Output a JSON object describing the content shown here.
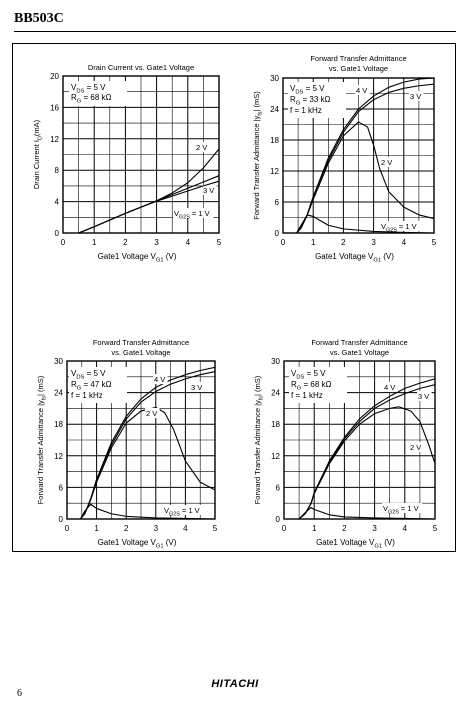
{
  "header": {
    "title": "BB503C"
  },
  "footer": {
    "brand": "HITACHI",
    "page_number": "6"
  },
  "chart_data": [
    {
      "type": "line",
      "title": "Drain Current vs. Gate1 Voltage",
      "xlabel": "Gate1 Voltage   V",
      "xlabel_sub": "G1",
      "xlabel_unit": "(V)",
      "ylabel": "Drain Current   I",
      "ylabel_sub": "D",
      "ylabel_unit": "(mA)",
      "xlim": [
        0,
        5
      ],
      "ylim": [
        0,
        20
      ],
      "xticks": [
        "0",
        "1",
        "2",
        "3",
        "4",
        "5"
      ],
      "yticks": [
        "0",
        "4",
        "8",
        "12",
        "16",
        "20"
      ],
      "conditions": [
        {
          "t": "V",
          "sub": "DS",
          "rest": "   = 5 V"
        },
        {
          "t": "R",
          "sub": "G",
          "rest": " = 68 kΩ"
        }
      ],
      "series": [
        {
          "name": "2 V",
          "x": [
            0.5,
            1,
            1.5,
            2,
            2.5,
            3,
            3.5,
            4,
            4.5,
            5
          ],
          "y": [
            0,
            0.8,
            1.65,
            2.5,
            3.3,
            4.1,
            5.1,
            6.4,
            8.3,
            10.7
          ]
        },
        {
          "name": "3 V",
          "x": [
            0.5,
            1,
            1.5,
            2,
            2.5,
            3,
            3.5,
            4,
            4.5,
            5
          ],
          "y": [
            0,
            0.8,
            1.65,
            2.5,
            3.3,
            4.1,
            4.9,
            5.7,
            6.5,
            7.3
          ]
        },
        {
          "name": "V",
          "name_sub": "G2S",
          "name_rest": " = 1 V",
          "x": [
            0.5,
            1,
            1.5,
            2,
            2.5,
            3,
            3.5,
            4,
            4.5,
            5
          ],
          "y": [
            0,
            0.8,
            1.65,
            2.5,
            3.3,
            4.05,
            4.7,
            5.35,
            6,
            6.6
          ]
        }
      ]
    },
    {
      "type": "line",
      "title": "Forward Transfer Admittance",
      "subtitle": "vs. Gate1 Voltage",
      "xlabel": "Gate1 Voltage   V",
      "xlabel_sub": "G1",
      "xlabel_unit": "(V)",
      "ylabel": "Forward Transfer Admittance  |y",
      "ylabel_sub": "fs",
      "ylabel_unit": "|  (mS)",
      "xlim": [
        0,
        5
      ],
      "ylim": [
        0,
        30
      ],
      "xticks": [
        "0",
        "1",
        "2",
        "3",
        "4",
        "5"
      ],
      "yticks": [
        "0",
        "6",
        "12",
        "18",
        "24",
        "30"
      ],
      "conditions": [
        {
          "t": "V",
          "sub": "DS",
          "rest": "   = 5 V"
        },
        {
          "t": "R",
          "sub": "G",
          "rest": " = 33 kΩ"
        },
        {
          "t": "f = 1 kHz",
          "sub": "",
          "rest": ""
        }
      ],
      "series": [
        {
          "name": "4 V",
          "x": [
            0.45,
            0.6,
            0.8,
            1,
            1.5,
            2,
            2.5,
            3,
            3.5,
            4,
            4.5,
            5
          ],
          "y": [
            0,
            1,
            3.5,
            7,
            14.5,
            20,
            24,
            26.5,
            28.2,
            29.2,
            29.8,
            30
          ]
        },
        {
          "name": "3 V",
          "x": [
            0.45,
            0.6,
            0.8,
            1,
            1.5,
            2,
            2.5,
            3,
            3.5,
            4,
            4.5,
            5
          ],
          "y": [
            0,
            1,
            3.5,
            7,
            14,
            19.5,
            23.5,
            25.8,
            27.2,
            28,
            28.5,
            28.8
          ]
        },
        {
          "name": "2 V",
          "x": [
            0.45,
            0.6,
            0.8,
            1,
            1.5,
            2,
            2.5,
            2.8,
            3,
            3.2,
            3.5,
            4,
            4.5,
            5
          ],
          "y": [
            0,
            1,
            3.4,
            6.5,
            13.5,
            18.8,
            21.5,
            20.5,
            17,
            12.5,
            8,
            5,
            3.5,
            2.8
          ]
        },
        {
          "name": "V",
          "name_sub": "G2S",
          "name_rest": " = 1 V",
          "x": [
            0.45,
            0.6,
            0.8,
            1,
            1.5,
            2,
            3,
            4,
            5
          ],
          "y": [
            0,
            1.5,
            3.5,
            3.2,
            1.5,
            0.8,
            0.3,
            0.1,
            0
          ]
        }
      ]
    },
    {
      "type": "line",
      "title": "Forward Transfer Admittance",
      "subtitle": "vs. Gate1 Voltage",
      "xlabel": "Gate1 Voltage   V",
      "xlabel_sub": "G1",
      "xlabel_unit": "(V)",
      "ylabel": "Forward Transfer Admittance  |y",
      "ylabel_sub": "fs",
      "ylabel_unit": "|  (mS)",
      "xlim": [
        0,
        5
      ],
      "ylim": [
        0,
        30
      ],
      "xticks": [
        "0",
        "1",
        "2",
        "3",
        "4",
        "5"
      ],
      "yticks": [
        "0",
        "6",
        "12",
        "18",
        "24",
        "30"
      ],
      "conditions": [
        {
          "t": "V",
          "sub": "DS",
          "rest": "   = 5 V"
        },
        {
          "t": "R",
          "sub": "G",
          "rest": " = 47 kΩ"
        },
        {
          "t": "f = 1 kHz",
          "sub": "",
          "rest": ""
        }
      ],
      "series": [
        {
          "name": "4 V",
          "x": [
            0.45,
            0.6,
            0.8,
            1,
            1.5,
            2,
            2.5,
            3,
            3.5,
            4,
            4.5,
            5
          ],
          "y": [
            0,
            1,
            3.8,
            7.5,
            14.5,
            19.5,
            22.8,
            25,
            26.4,
            27.4,
            28.2,
            28.8
          ]
        },
        {
          "name": "3 V",
          "x": [
            0.45,
            0.6,
            0.8,
            1,
            1.5,
            2,
            2.5,
            3,
            3.5,
            4,
            4.5,
            5
          ],
          "y": [
            0,
            1,
            3.8,
            7.5,
            14,
            19,
            22.2,
            24.2,
            25.6,
            26.6,
            27.4,
            28
          ]
        },
        {
          "name": "2 V",
          "x": [
            0.45,
            0.6,
            0.8,
            1,
            1.5,
            2,
            2.5,
            3,
            3.3,
            3.6,
            4,
            4.5,
            5
          ],
          "y": [
            0,
            1,
            3.6,
            7,
            13.5,
            18.2,
            20.5,
            21.2,
            20.2,
            17,
            11,
            7,
            5.5
          ]
        },
        {
          "name": "V",
          "name_sub": "G2S",
          "name_rest": " = 1 V",
          "x": [
            0.45,
            0.6,
            0.8,
            1,
            1.5,
            2,
            3,
            4,
            5
          ],
          "y": [
            0,
            1.5,
            2.8,
            2,
            1,
            0.5,
            0.2,
            0.1,
            0
          ]
        }
      ]
    },
    {
      "type": "line",
      "title": "Forward Transfer Admittance",
      "subtitle": "vs. Gate1 Voltage",
      "xlabel": "Gate1 Voltage   V",
      "xlabel_sub": "G1",
      "xlabel_unit": "(V)",
      "ylabel": "Forward Transfer Admittance  |y",
      "ylabel_sub": "fs",
      "ylabel_unit": "|  (mS)",
      "xlim": [
        0,
        5
      ],
      "ylim": [
        0,
        30
      ],
      "xticks": [
        "0",
        "1",
        "2",
        "3",
        "4",
        "5"
      ],
      "yticks": [
        "0",
        "6",
        "12",
        "18",
        "24",
        "30"
      ],
      "conditions": [
        {
          "t": "V",
          "sub": "DS",
          "rest": "   = 5 V"
        },
        {
          "t": "R",
          "sub": "G",
          "rest": " = 68 kΩ"
        },
        {
          "t": "f = 1 kHz",
          "sub": "",
          "rest": ""
        }
      ],
      "series": [
        {
          "name": "4 V",
          "x": [
            0.5,
            0.7,
            0.9,
            1,
            1.5,
            2,
            2.5,
            3,
            3.5,
            4,
            4.5,
            5
          ],
          "y": [
            0,
            1,
            3,
            5,
            11,
            15.5,
            19,
            21.5,
            23.3,
            24.8,
            25.8,
            26.6
          ]
        },
        {
          "name": "3 V",
          "x": [
            0.5,
            0.7,
            0.9,
            1,
            1.5,
            2,
            2.5,
            3,
            3.5,
            4,
            4.5,
            5
          ],
          "y": [
            0,
            1,
            3,
            5,
            10.7,
            15.2,
            18.5,
            21,
            22.6,
            23.8,
            24.8,
            25.5
          ]
        },
        {
          "name": "2 V",
          "x": [
            0.5,
            0.7,
            0.9,
            1,
            1.5,
            2,
            2.5,
            3,
            3.5,
            3.8,
            4.2,
            4.5,
            4.8,
            5
          ],
          "y": [
            0,
            1,
            3,
            4.8,
            10.5,
            14.8,
            18,
            20,
            21,
            21.3,
            20.5,
            18.5,
            14,
            10.5
          ]
        },
        {
          "name": "V",
          "name_sub": "G2S",
          "name_rest": " = 1 V",
          "x": [
            0.5,
            0.7,
            0.9,
            1,
            1.5,
            2,
            3,
            4,
            5
          ],
          "y": [
            0,
            1.2,
            2.2,
            1.8,
            0.8,
            0.4,
            0.2,
            0.1,
            0
          ]
        }
      ]
    }
  ]
}
